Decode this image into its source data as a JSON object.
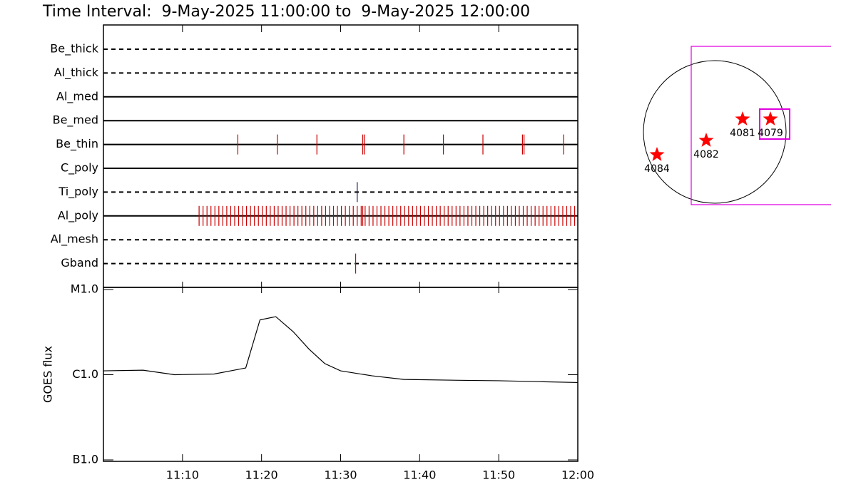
{
  "title": "Time Interval:  9-May-2025 11:00:00 to  9-May-2025 12:00:00",
  "chart_data": [
    {
      "type": "timeline",
      "xlim": [
        0,
        60
      ],
      "filters": [
        {
          "name": "Be_thick",
          "line": "dashed",
          "color": "#cc0000",
          "times": []
        },
        {
          "name": "Al_thick",
          "line": "dashed",
          "color": "#cc0000",
          "times": []
        },
        {
          "name": "Al_med",
          "line": "solid",
          "color": "#cc0000",
          "times": []
        },
        {
          "name": "Be_med",
          "line": "solid",
          "color": "#cc0000",
          "times": []
        },
        {
          "name": "Be_thin",
          "line": "solid",
          "color": "#cc0000",
          "times": [
            17,
            22,
            27,
            32.8,
            33,
            38,
            43,
            48,
            53,
            53.2,
            58.2
          ]
        },
        {
          "name": "C_poly",
          "line": "solid",
          "color": "#cc0000",
          "times": []
        },
        {
          "name": "Ti_poly",
          "line": "dashed",
          "color": "#1a1a50",
          "times": [
            32.1
          ]
        },
        {
          "name": "Al_poly",
          "line": "solid",
          "color": "#cc0000",
          "times": [
            12.1,
            12.6,
            13.1,
            13.6,
            14.1,
            14.6,
            15.1,
            15.6,
            16.1,
            16.6,
            17.1,
            17.6,
            18.1,
            18.6,
            19.1,
            19.6,
            20.1,
            20.6,
            21.1,
            21.6,
            22.1,
            22.6,
            23.1,
            23.6,
            24.1,
            24.6,
            25.1,
            25.6,
            26.1,
            26.6,
            27.1,
            27.6,
            28.1,
            28.6,
            29.1,
            29.6,
            30.1,
            30.6,
            31.1,
            31.6,
            32.1,
            32.6,
            32.8,
            33.1,
            33.6,
            34.1,
            34.6,
            35.1,
            35.6,
            36.1,
            36.6,
            37.1,
            37.6,
            38.1,
            38.6,
            39.1,
            39.6,
            40.1,
            40.6,
            41.1,
            41.6,
            42.1,
            42.6,
            43.1,
            43.6,
            44.1,
            44.6,
            45.1,
            45.6,
            46.1,
            46.6,
            47.1,
            47.6,
            48.1,
            48.6,
            49.1,
            49.6,
            50.1,
            50.6,
            51.1,
            51.6,
            52.1,
            52.6,
            53.1,
            53.6,
            54.1,
            54.6,
            55.1,
            55.6,
            56.1,
            56.6,
            57.1,
            57.6,
            58.1,
            58.6,
            59.1,
            59.6
          ]
        },
        {
          "name": "Al_mesh",
          "line": "dashed",
          "color": "#cc0000",
          "times": []
        },
        {
          "name": "Gband",
          "line": "dashed",
          "color": "#cc0000",
          "times": [
            31.9
          ]
        }
      ]
    },
    {
      "type": "line",
      "y_label": "GOES flux",
      "color": "#000000",
      "log_y": true,
      "x": [
        0,
        5,
        9,
        14,
        18,
        19.8,
        21.8,
        24,
        26,
        28,
        30,
        34,
        38,
        45,
        50,
        55,
        60
      ],
      "values": [
        1.11e-06,
        1.13e-06,
        1e-06,
        1.02e-06,
        1.2e-06,
        4.4e-06,
        4.8e-06,
        3.2e-06,
        2e-06,
        1.35e-06,
        1.11e-06,
        9.7e-07,
        8.8e-07,
        8.6e-07,
        8.5e-07,
        8.3e-07,
        8.1e-07
      ],
      "xlim": [
        0,
        60
      ],
      "xticks": [
        {
          "value": 10,
          "label": "11:10"
        },
        {
          "value": 20,
          "label": "11:20"
        },
        {
          "value": 30,
          "label": "11:30"
        },
        {
          "value": 40,
          "label": "11:40"
        },
        {
          "value": 50,
          "label": "11:50"
        },
        {
          "value": 60,
          "label": "12:00"
        }
      ],
      "ylim": [
        1e-07,
        1e-05
      ],
      "yticks": [
        {
          "value": 1e-05,
          "label": "M1.0"
        },
        {
          "value": 1e-06,
          "label": "C1.0"
        },
        {
          "value": 1e-07,
          "label": "B1.0"
        }
      ]
    },
    {
      "type": "map",
      "color": "#ff0000",
      "regions": [
        {
          "label": "4084"
        },
        {
          "label": "4082"
        },
        {
          "label": "4081"
        },
        {
          "label": "4079"
        }
      ]
    }
  ]
}
